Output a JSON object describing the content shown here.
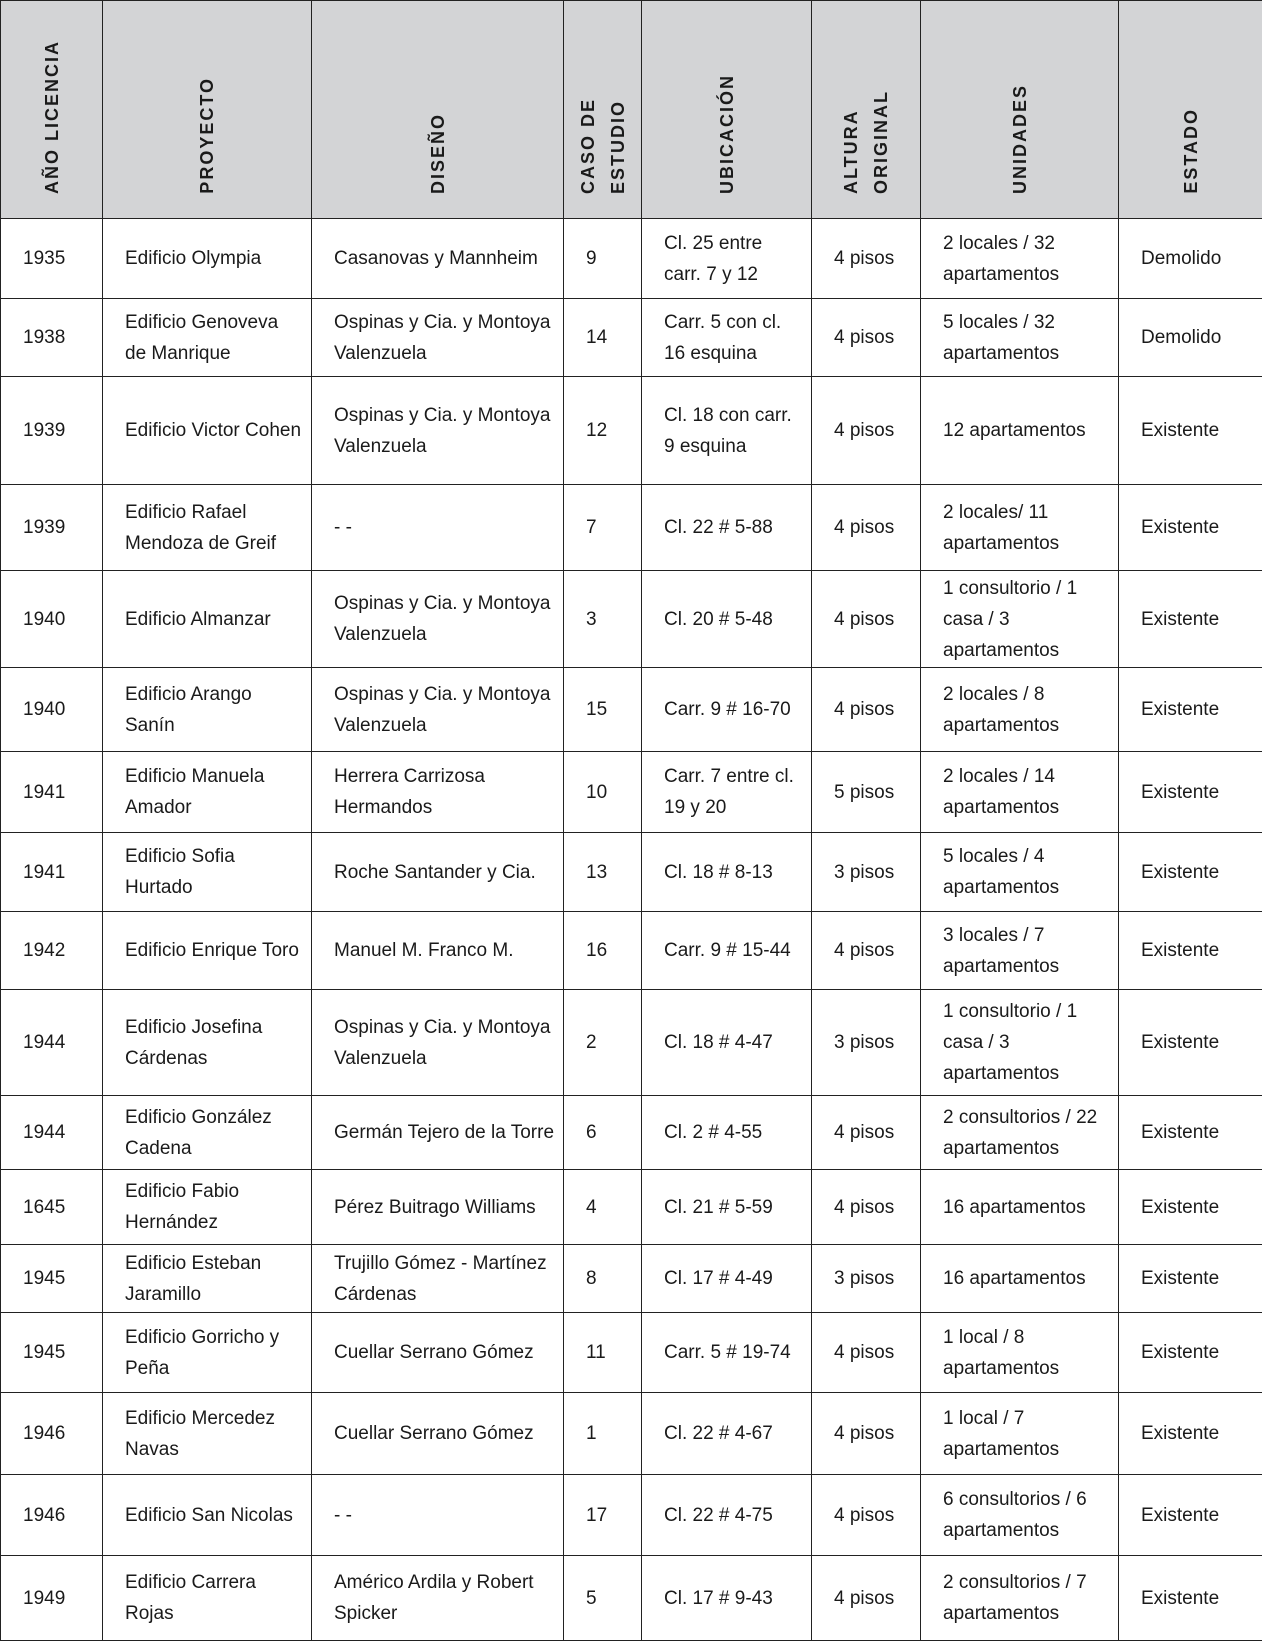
{
  "headers": [
    "AÑO LICENCIA",
    "PROYECTO",
    "DISEÑO",
    "CASO DE ESTUDIO",
    "UBICACIÓN",
    "ALTURA ORIGINAL",
    "UNIDADES",
    "ESTADO"
  ],
  "rows": [
    [
      "1935",
      "Edificio Olympia",
      "Casanovas y Mannheim",
      "9",
      "Cl. 25 entre carr. 7 y 12",
      "4 pisos",
      "2 locales / 32 apartamentos",
      "Demolido"
    ],
    [
      "1938",
      "Edificio Genoveva de Manrique",
      "Ospinas y Cia. y Montoya Valenzuela",
      "14",
      "Carr. 5 con cl. 16 esquina",
      "4 pisos",
      "5 locales / 32 apartamentos",
      "Demolido"
    ],
    [
      "1939",
      "Edificio Victor Cohen",
      "Ospinas y Cia. y Montoya Valenzuela",
      "12",
      "Cl. 18 con carr. 9 esquina",
      "4 pisos",
      "12 apartamentos",
      "Existente"
    ],
    [
      "1939",
      "Edificio Rafael Mendoza de Greif",
      "- -",
      "7",
      "Cl. 22 # 5-88",
      "4 pisos",
      "2 locales/ 11 apartamentos",
      "Existente"
    ],
    [
      "1940",
      "Edificio Almanzar",
      "Ospinas y Cia. y Montoya Valenzuela",
      "3",
      "Cl. 20 # 5-48",
      "4 pisos",
      "1 consultorio / 1 casa / 3 apartamentos",
      "Existente"
    ],
    [
      "1940",
      "Edificio Arango Sanín",
      "Ospinas y Cia. y Montoya Valenzuela",
      "15",
      "Carr. 9 # 16-70",
      "4 pisos",
      "2 locales / 8 apartamentos",
      "Existente"
    ],
    [
      "1941",
      "Edificio Manuela Amador",
      "Herrera Carrizosa Hermandos",
      "10",
      "Carr. 7 entre cl. 19 y 20",
      "5 pisos",
      "2 locales / 14 apartamentos",
      "Existente"
    ],
    [
      "1941",
      "Edificio Sofia Hurtado",
      "Roche Santander y Cia.",
      "13",
      "Cl. 18 # 8-13",
      "3 pisos",
      "5 locales / 4 apartamentos",
      "Existente"
    ],
    [
      "1942",
      "Edificio Enrique Toro",
      "Manuel M. Franco M.",
      "16",
      "Carr. 9 # 15-44",
      "4 pisos",
      "3 locales / 7 apartamentos",
      "Existente"
    ],
    [
      "1944",
      "Edificio Josefina Cárdenas",
      "Ospinas y Cia. y Montoya Valenzuela",
      "2",
      "Cl. 18 # 4-47",
      "3 pisos",
      "1 consultorio / 1 casa / 3 apartamentos",
      "Existente"
    ],
    [
      "1944",
      "Edificio González Cadena",
      "Germán Tejero de la Torre",
      "6",
      "Cl. 2 # 4-55",
      "4 pisos",
      "2 consultorios / 22 apartamentos",
      "Existente"
    ],
    [
      "1645",
      "Edificio Fabio Hernández",
      "Pérez Buitrago Williams",
      "4",
      "Cl. 21 # 5-59",
      "4 pisos",
      "16 apartamentos",
      "Existente"
    ],
    [
      "1945",
      "Edificio Esteban Jaramillo",
      "Trujillo Gómez - Martínez Cárdenas",
      "8",
      "Cl. 17 # 4-49",
      "3 pisos",
      "16 apartamentos",
      "Existente"
    ],
    [
      "1945",
      "Edificio Gorricho y Peña",
      "Cuellar Serrano Gómez",
      "11",
      "Carr. 5 # 19-74",
      "4 pisos",
      "1 local / 8 apartamentos",
      "Existente"
    ],
    [
      "1946",
      "Edificio Mercedez Navas",
      "Cuellar Serrano Gómez",
      "1",
      "Cl. 22 # 4-67",
      "4 pisos",
      "1 local / 7 apartamentos",
      "Existente"
    ],
    [
      "1946",
      "Edificio San Nicolas",
      "- -",
      "17",
      "Cl. 22 # 4-75",
      "4 pisos",
      "6 consultorios / 6 apartamentos",
      "Existente"
    ],
    [
      "1949",
      "Edificio Carrera Rojas",
      "Américo Ardila y Robert Spicker",
      "5",
      "Cl. 17 # 9-43",
      "4 pisos",
      "2 consultorios / 7 apartamentos",
      "Existente"
    ]
  ]
}
